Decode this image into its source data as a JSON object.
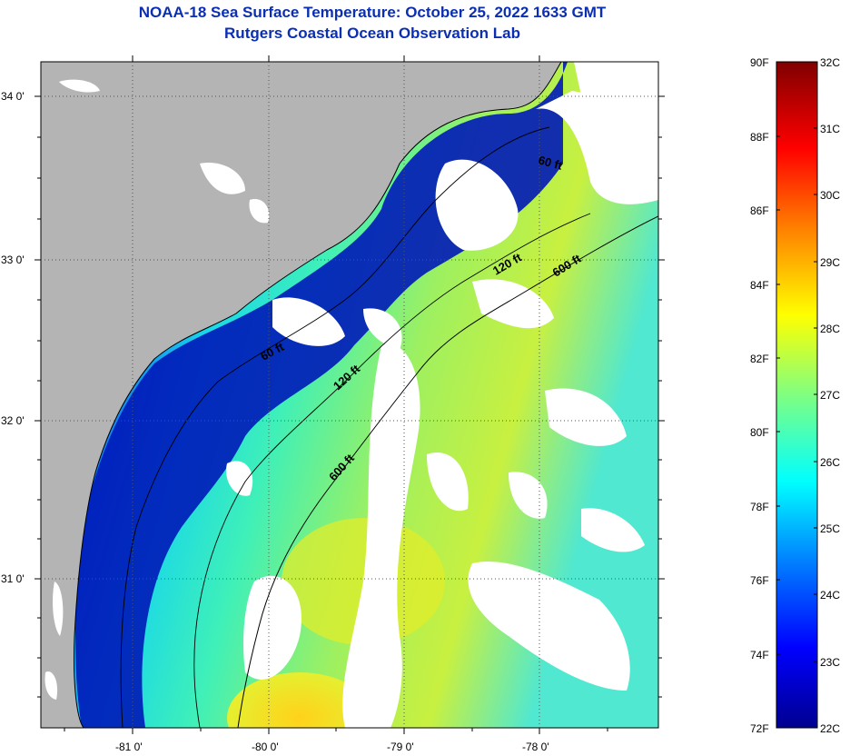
{
  "title": {
    "line1": "NOAA-18 Sea Surface Temperature:  October 25, 2022 1633 GMT",
    "line2": "Rutgers Coastal Ocean Observation Lab"
  },
  "axes": {
    "lat_labels": [
      "34 0'",
      "33 0'",
      "32 0'",
      "31 0'"
    ],
    "lon_labels": [
      "-81 0'",
      "-80 0'",
      "-79 0'",
      "-78 0'"
    ]
  },
  "contours": {
    "labels": [
      "60 ft",
      "120 ft",
      "600 ft",
      "60 ft",
      "120 ft",
      "600 ft"
    ]
  },
  "colorbar": {
    "f_labels": [
      "90F",
      "88F",
      "86F",
      "84F",
      "82F",
      "80F",
      "78F",
      "76F",
      "74F",
      "72F"
    ],
    "c_labels": [
      "32C",
      "31C",
      "30C",
      "29C",
      "28C",
      "27C",
      "26C",
      "25C",
      "24C",
      "23C",
      "22C"
    ]
  },
  "colors": {
    "land": "#b4b4b4",
    "cloud": "#ffffff",
    "title": "#0b2fb3"
  }
}
